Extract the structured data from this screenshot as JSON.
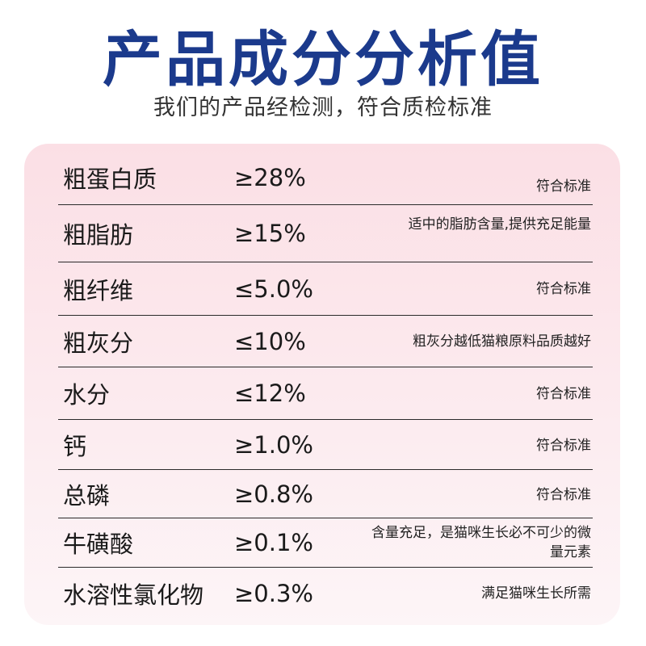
{
  "header": {
    "title": "产品成分分析值",
    "subtitle": "我们的产品经检测，符合质检标准"
  },
  "rows": [
    {
      "name": "粗蛋白质",
      "value": "≥28%",
      "note": "符合标准"
    },
    {
      "name": "粗脂肪",
      "value": "≥15%",
      "note": "适中的脂肪含量,提供充足能量"
    },
    {
      "name": "粗纤维",
      "value": "≤5.0%",
      "note": "符合标准"
    },
    {
      "name": "粗灰分",
      "value": "≤10%",
      "note": "粗灰分越低猫粮原料品质越好"
    },
    {
      "name": "水分",
      "value": "≤12%",
      "note": "符合标准"
    },
    {
      "name": "钙",
      "value": "≥1.0%",
      "note": "符合标准"
    },
    {
      "name": "总磷",
      "value": "≥0.8%",
      "note": "符合标准"
    },
    {
      "name": "牛磺酸",
      "value": "≥0.1%",
      "note": "含量充足，是猫咪生长必不可少的微量元素"
    },
    {
      "name": "水溶性氯化物",
      "value": "≥0.3%",
      "note": "满足猫咪生长所需"
    }
  ],
  "colors": {
    "title": "#1b3a8c",
    "card_top": "#fbdfe5",
    "card_bottom": "#fdf5f7"
  }
}
